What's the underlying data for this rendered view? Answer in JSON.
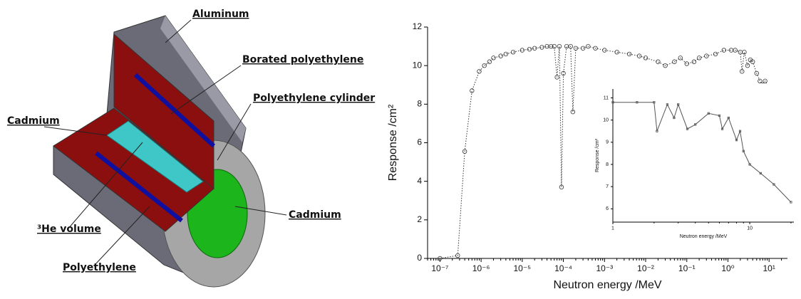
{
  "diagram": {
    "labels": [
      "Aluminum",
      "Borated polyethylene",
      "Polyethylene cylinder",
      "Cadmium",
      "³He volume",
      "Polyethylene",
      "Cadmium"
    ]
  },
  "chart_data": [
    {
      "type": "line",
      "marker": "circle",
      "line_style": "dotted",
      "color": "#333333",
      "xscale": "log",
      "xlabel": "Neutron energy /MeV",
      "ylabel": "Response /cm²",
      "x": [
        1e-07,
        2.7e-07,
        4e-07,
        6e-07,
        9e-07,
        1.2e-06,
        1.6e-06,
        2e-06,
        3e-06,
        4e-06,
        6e-06,
        1e-05,
        1.5e-05,
        2e-05,
        3e-05,
        4e-05,
        5e-05,
        6e-05,
        7e-05,
        8e-05,
        9e-05,
        0.0001,
        0.00012,
        0.00015,
        0.00017,
        0.0002,
        0.0003,
        0.0004,
        0.0006,
        0.001,
        0.002,
        0.004,
        0.007,
        0.01,
        0.02,
        0.03,
        0.05,
        0.07,
        0.1,
        0.15,
        0.2,
        0.3,
        0.5,
        0.8,
        1.2,
        1.5,
        2,
        2.2,
        2.5,
        3,
        3.5,
        4,
        5,
        6,
        7,
        8,
        10,
        12,
        15,
        20
      ],
      "values": [
        0,
        0.15,
        5.55,
        8.7,
        9.7,
        10.0,
        10.2,
        10.4,
        10.5,
        10.6,
        10.7,
        10.8,
        10.85,
        10.9,
        10.95,
        11.0,
        11.0,
        11.0,
        9.4,
        11.0,
        3.7,
        9.6,
        11.0,
        11.0,
        7.6,
        10.9,
        10.9,
        11.0,
        10.9,
        10.8,
        10.7,
        10.6,
        10.5,
        10.4,
        10.2,
        10.0,
        10.2,
        10.4,
        10.1,
        10.2,
        10.4,
        10.5,
        10.6,
        10.8,
        10.8,
        10.8,
        10.7,
        9.7,
        10.7,
        10.0,
        10.3,
        10.2,
        9.6,
        9.2,
        9.0,
        9.2,
        8.9,
        8.3,
        7.9,
        6.9
      ],
      "xlim": [
        5e-08,
        28
      ],
      "ylim": [
        0,
        12
      ],
      "xticks": [
        {
          "value": 1e-07,
          "label": "10⁻⁷"
        },
        {
          "value": 1e-06,
          "label": "10⁻⁶"
        },
        {
          "value": 1e-05,
          "label": "10⁻⁵"
        },
        {
          "value": 0.0001,
          "label": "10⁻⁴"
        },
        {
          "value": 0.001,
          "label": "10⁻³"
        },
        {
          "value": 0.01,
          "label": "10⁻²"
        },
        {
          "value": 0.1,
          "label": "10⁻¹"
        },
        {
          "value": 1,
          "label": "10⁰"
        },
        {
          "value": 10,
          "label": "10¹"
        }
      ],
      "yticks": [
        0,
        2,
        4,
        6,
        8,
        10,
        12
      ]
    },
    {
      "type": "line",
      "marker": "square",
      "line_style": "solid",
      "color": "#555555",
      "xscale": "log",
      "xlabel": "Neutron energy /MeV",
      "ylabel": "Response /cm²",
      "x": [
        1,
        1.5,
        2,
        2.1,
        2.5,
        2.8,
        3,
        3.5,
        4,
        5,
        6,
        6.3,
        7,
        8,
        8.5,
        9,
        10,
        12,
        15,
        20
      ],
      "values": [
        10.8,
        10.8,
        10.8,
        9.5,
        10.7,
        10.1,
        10.7,
        9.6,
        9.8,
        10.3,
        10.2,
        9.6,
        10.1,
        9.1,
        9.5,
        8.6,
        8.0,
        7.6,
        7.1,
        6.3
      ],
      "xlim": [
        1,
        21
      ],
      "ylim": [
        5.4,
        11.4
      ],
      "xticks": [
        1,
        10
      ],
      "yticks": [
        6,
        7,
        8,
        9,
        10,
        11
      ]
    }
  ]
}
